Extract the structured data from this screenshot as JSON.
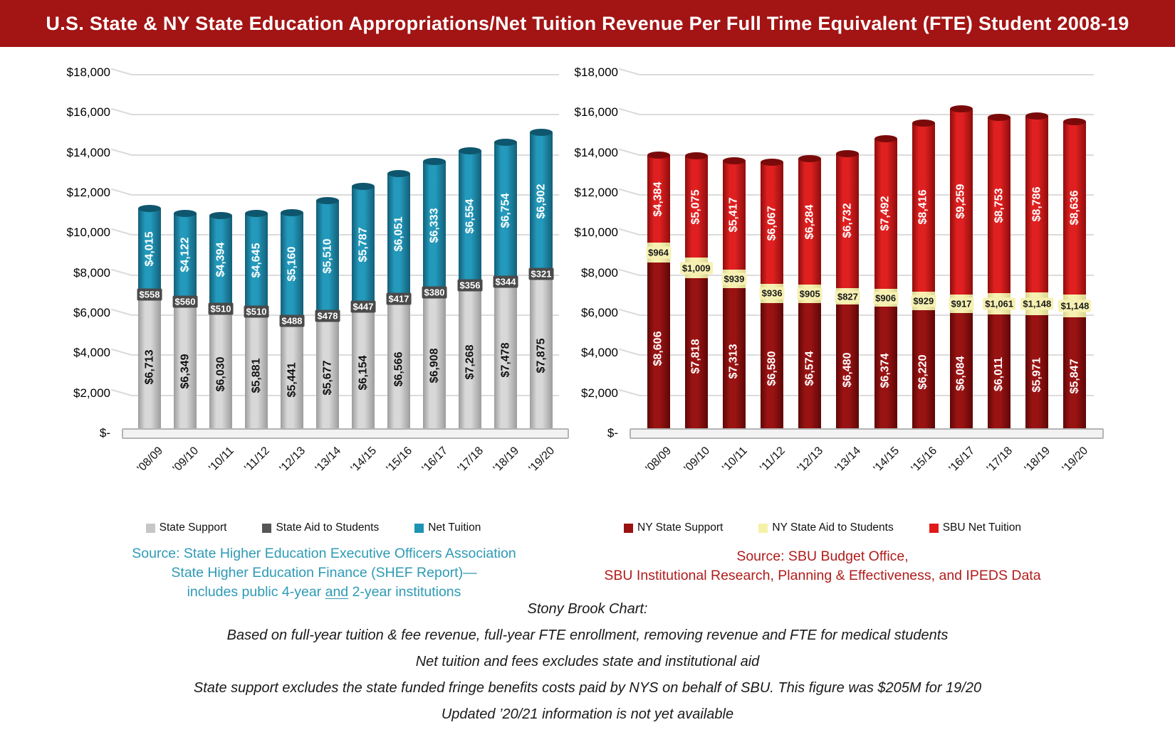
{
  "window": {
    "title": "U.S. State & NY State Education Appropriations/Net Tuition Revenue Per Full Time Equivalent (FTE) Student 2008-19"
  },
  "colors": {
    "header_bg": "#A31414",
    "grid": "#DBDBDB",
    "us_source_text": "#2E9AB5",
    "sbu_source_text": "#B01C1C"
  },
  "chart_data": [
    {
      "id": "us",
      "type": "bar",
      "stacked": true,
      "title": "",
      "xlabel": "",
      "ylabel": "",
      "ylim": [
        0,
        18000
      ],
      "y_tick_step": 2000,
      "grid": true,
      "legend_position": "bottom",
      "y_tick_labels": [
        "$-",
        "$2,000",
        "$4,000",
        "$6,000",
        "$8,000",
        "$10,000",
        "$12,000",
        "$14,000",
        "$16,000",
        "$18,000"
      ],
      "categories": [
        "'08/09",
        "'09/10",
        "'10/11",
        "'11/12",
        "'12/13",
        "'13/14",
        "'14/15",
        "'15/16",
        "'16/17",
        "'17/18",
        "'18/19",
        "'19/20"
      ],
      "series": [
        {
          "name": "State Support",
          "values": [
            6713,
            6349,
            6030,
            5881,
            5441,
            5677,
            6154,
            6566,
            6908,
            7268,
            7478,
            7875
          ],
          "label_style": "rotated",
          "segment_colors": {
            "mid": "#D8D8D8",
            "edge": "#9C9C9C",
            "cap": "#B5B5B5",
            "text": "#111111"
          }
        },
        {
          "name": "State Aid to Students",
          "values": [
            558,
            560,
            510,
            510,
            488,
            478,
            447,
            417,
            380,
            356,
            344,
            321
          ],
          "label_style": "horizontal",
          "segment_colors": {
            "mid": "#4A4A4A",
            "edge": "#323232",
            "cap": "#3F3F3F",
            "text": "#FFFFFF"
          }
        },
        {
          "name": "Net Tuition",
          "values": [
            4015,
            4122,
            4394,
            4645,
            5160,
            5510,
            5787,
            6051,
            6333,
            6554,
            6754,
            6902
          ],
          "label_style": "rotated",
          "segment_colors": {
            "mid": "#2399BB",
            "edge": "#135F78",
            "cap": "#0E566D",
            "text": "#FFFFFF"
          }
        }
      ],
      "legend": [
        {
          "label": "State Support",
          "swatch": "#C6C6C6"
        },
        {
          "label": "State Aid to Students",
          "swatch": "#565656"
        },
        {
          "label": "Net Tuition",
          "swatch": "#1E93B2"
        }
      ]
    },
    {
      "id": "sbu",
      "type": "bar",
      "stacked": true,
      "title": "",
      "xlabel": "",
      "ylabel": "",
      "ylim": [
        0,
        18000
      ],
      "y_tick_step": 2000,
      "grid": true,
      "legend_position": "bottom",
      "y_tick_labels": [
        "$-",
        "$2,000",
        "$4,000",
        "$6,000",
        "$8,000",
        "$10,000",
        "$12,000",
        "$14,000",
        "$16,000",
        "$18,000"
      ],
      "categories": [
        "'08/09",
        "'09/10",
        "'10/11",
        "'11/12",
        "'12/13",
        "'13/14",
        "'14/15",
        "'15/16",
        "'16/17",
        "'17/18",
        "'18/19",
        "'19/20"
      ],
      "series": [
        {
          "name": "NY State Support",
          "values": [
            8606,
            7818,
            7313,
            6580,
            6574,
            6480,
            6374,
            6220,
            6084,
            6011,
            5971,
            5847
          ],
          "label_style": "rotated",
          "segment_colors": {
            "mid": "#9A1313",
            "edge": "#5E0707",
            "cap": "#6E0B0B",
            "text": "#FFFFFF"
          }
        },
        {
          "name": "NY State Aid to Students",
          "values": [
            964,
            1009,
            939,
            936,
            905,
            827,
            906,
            929,
            917,
            1061,
            1148,
            1148
          ],
          "label_style": "horizontal",
          "segment_colors": {
            "mid": "#F6F1B3",
            "edge": "#DCD68D",
            "cap": "#E6E09A",
            "text": "#1A1A1A"
          }
        },
        {
          "name": "SBU Net Tuition",
          "values": [
            4384,
            5075,
            5417,
            6067,
            6284,
            6732,
            7492,
            8416,
            9259,
            8753,
            8786,
            8636
          ],
          "label_style": "rotated",
          "segment_colors": {
            "mid": "#E02020",
            "edge": "#8F0D0D",
            "cap": "#7A0A0A",
            "text": "#FFFFFF"
          }
        }
      ],
      "legend": [
        {
          "label": "NY State Support",
          "swatch": "#9A1111"
        },
        {
          "label": "NY State Aid to Students",
          "swatch": "#F6F1A8"
        },
        {
          "label": "SBU Net Tuition",
          "swatch": "#E01A1A"
        }
      ]
    }
  ],
  "sources": {
    "us": {
      "line1": "Source: State Higher Education Executive Officers Association",
      "line2": "State Higher Education Finance (SHEF Report)—",
      "line3_pre": "includes public 4-year ",
      "line3_underline": "and",
      "line3_post": " 2-year institutions"
    },
    "sbu": {
      "line1": "Source: SBU Budget Office,",
      "line2": "SBU Institutional Research, Planning & Effectiveness, and IPEDS Data"
    }
  },
  "footer": {
    "line1": "Stony Brook Chart:",
    "line2": "Based on full-year tuition & fee revenue, full-year FTE enrollment, removing revenue and FTE for medical students",
    "line3": "Net tuition and fees excludes state and institutional aid",
    "line4": "State support excludes the state funded fringe benefits costs paid by NYS on behalf of SBU. This figure was $205M for 19/20",
    "line5": "Updated ’20/21 information is not yet available"
  }
}
